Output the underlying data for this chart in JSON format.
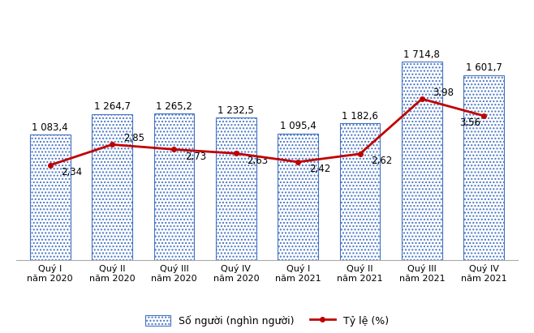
{
  "categories": [
    "Quý I\nnăm 2020",
    "Quý II\nnăm 2020",
    "Quý III\nnăm 2020",
    "Quý IV\nnăm 2020",
    "Quý I\nnăm 2021",
    "Quý II\nnăm 2021",
    "Quý III\nnăm 2021",
    "Quý IV\nnăm 2021"
  ],
  "bar_values": [
    1083.4,
    1264.7,
    1265.2,
    1232.5,
    1095.4,
    1182.6,
    1714.8,
    1601.7
  ],
  "bar_labels": [
    "1 083,4",
    "1 264,7",
    "1 265,2",
    "1 232,5",
    "1 095,4",
    "1 182,6",
    "1 714,8",
    "1 601,7"
  ],
  "line_values": [
    2.34,
    2.85,
    2.73,
    2.63,
    2.42,
    2.62,
    3.98,
    3.56
  ],
  "line_labels": [
    "2,34",
    "2,85",
    "2,73",
    "2,63",
    "2,42",
    "2,62",
    "3,98",
    "3,56"
  ],
  "bar_color_face": "#ffffff",
  "bar_color_edge": "#4472C4",
  "bar_hatch": "....",
  "line_color": "#C00000",
  "bar_label_fontsize": 8.5,
  "line_label_fontsize": 8.5,
  "tick_fontsize": 8,
  "legend_fontsize": 9,
  "ylim_bar": [
    0,
    2050
  ],
  "ylim_line": [
    0,
    5.85
  ],
  "background_color": "#ffffff",
  "legend_bar_label": "Số người (nghìn người)",
  "legend_line_label": "Tỷ lệ (%)",
  "line_label_offsets_x": [
    0.18,
    0.18,
    0.18,
    0.18,
    0.18,
    0.18,
    0.18,
    -0.05
  ],
  "line_label_offsets_y": [
    -0.18,
    0.15,
    -0.18,
    -0.18,
    -0.18,
    -0.18,
    0.15,
    -0.18
  ],
  "line_label_ha": [
    "left",
    "left",
    "left",
    "left",
    "left",
    "left",
    "left",
    "right"
  ]
}
